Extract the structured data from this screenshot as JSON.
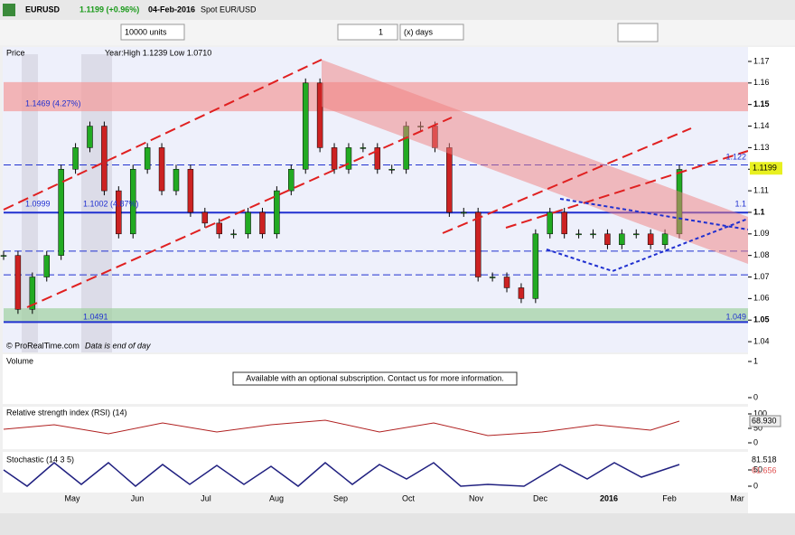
{
  "header": {
    "symbol": "EURUSD",
    "change": "1.1199 (+0.96%)",
    "date": "04-Feb-2016",
    "name": "Spot EUR/USD"
  },
  "toolbar": {
    "units": "10000 units",
    "period": "1",
    "period_unit": "(x) days"
  },
  "chart_data": {
    "type": "candlestick",
    "title": "Price",
    "info": "Year:High 1.1239 Low 1.0710",
    "values": [
      1.08,
      1.055,
      1.07,
      1.08,
      1.12,
      1.13,
      1.14,
      1.11,
      1.09,
      1.12,
      1.13,
      1.11,
      1.12,
      1.1,
      1.095,
      1.09,
      1.09,
      1.1,
      1.09,
      1.11,
      1.12,
      1.16,
      1.13,
      1.12,
      1.13,
      1.13,
      1.12,
      1.12,
      1.14,
      1.14,
      1.13,
      1.1,
      1.1,
      1.07,
      1.07,
      1.065,
      1.06,
      1.09,
      1.1,
      1.09,
      1.09,
      1.09,
      1.085,
      1.09,
      1.09,
      1.085,
      1.09,
      1.1199
    ],
    "up_color": "#22aa22",
    "down_color": "#cc2222",
    "months": [
      "May",
      "Jun",
      "Jul",
      "Aug",
      "Sep",
      "Oct",
      "Nov",
      "Dec",
      "2016",
      "Feb",
      "Mar"
    ],
    "ylim": [
      1.035,
      1.1767
    ],
    "yticks": [
      1.04,
      1.05,
      1.06,
      1.07,
      1.08,
      1.09,
      1.1,
      1.11,
      1.12,
      1.13,
      1.14,
      1.15,
      1.16,
      1.17
    ],
    "zones": [
      {
        "from": 1.1469,
        "to": 1.1604,
        "color": "#f49a9a"
      },
      {
        "from": 1.0491,
        "to": 1.0555,
        "color": "#9fd09f"
      }
    ],
    "lines": [
      {
        "value": 1.0999,
        "style": "solid"
      },
      {
        "value": 1.0491,
        "style": "solid"
      },
      {
        "value": 1.122,
        "style": "dashed"
      },
      {
        "value": 1.082,
        "style": "dashed"
      },
      {
        "value": 1.071,
        "style": "dashed"
      }
    ],
    "last_price": "1.1199",
    "annotations": [
      "1.1469 (4.27%)",
      "1.0999",
      "1.1002 (4.87%)",
      "1.0491",
      "1.049",
      "1.122",
      "1.1"
    ],
    "credit": "© ProRealTime.com",
    "note": "Data is end of day"
  },
  "volume": {
    "title": "Volume",
    "message": "Available with an optional subscription. Contact us for more information.",
    "yticks": [
      0,
      1
    ]
  },
  "rsi": {
    "title": "Relative strength index (RSI) (14)",
    "yticks": [
      0,
      50,
      100
    ],
    "value": "68.930"
  },
  "stochastic": {
    "title": "Stochastic (14 3 5)",
    "yticks": [
      0,
      50
    ],
    "values": [
      "81.518",
      "61.656"
    ]
  }
}
